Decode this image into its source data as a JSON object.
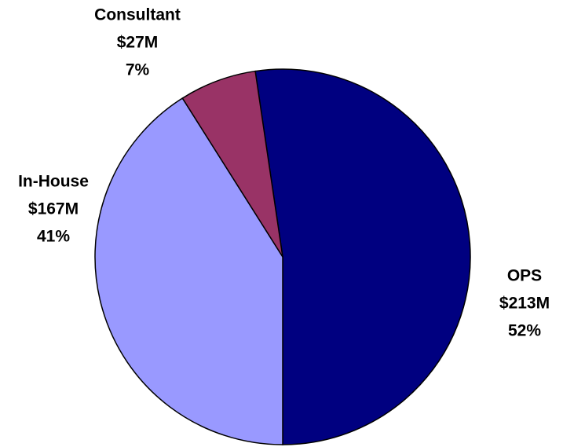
{
  "chart_data": {
    "type": "pie",
    "categories": [
      "OPS",
      "In-House",
      "Consultant"
    ],
    "values": [
      213000000,
      167000000,
      27000000
    ],
    "value_labels": [
      "$213M",
      "$167M",
      "$27M"
    ],
    "percents": [
      52,
      41,
      7
    ],
    "percent_labels": [
      "52%",
      "41%",
      "7%"
    ],
    "colors": [
      "#000080",
      "#9999ff",
      "#993366"
    ]
  }
}
